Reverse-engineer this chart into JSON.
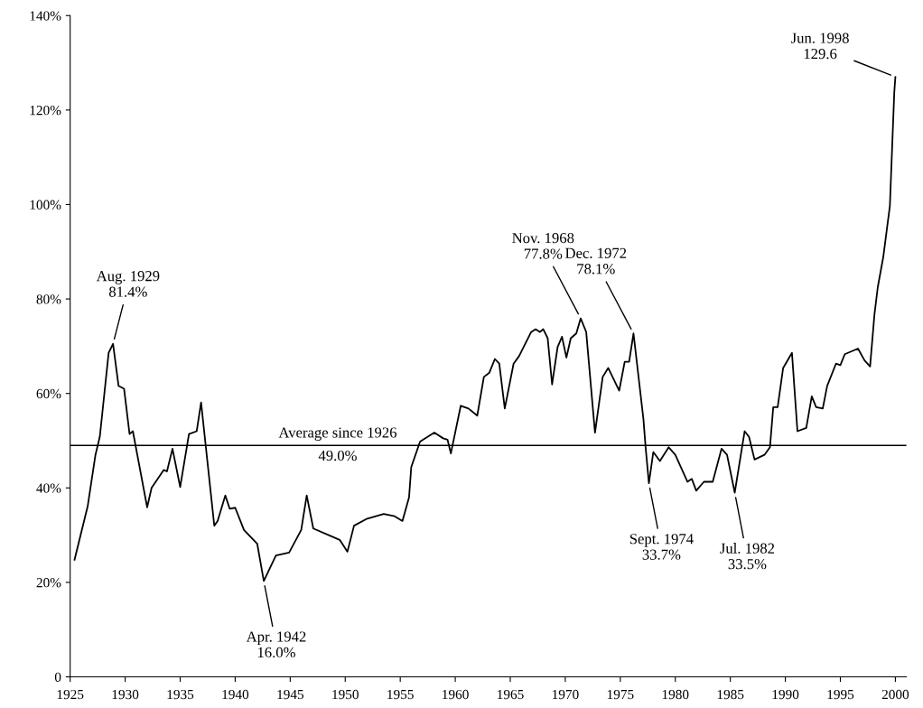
{
  "chart_data": {
    "type": "line",
    "x": [
      1925.4,
      1926.6,
      1927.3,
      1927.7,
      1928.5,
      1928.9,
      1929.4,
      1929.9,
      1930.4,
      1930.7,
      1932.0,
      1932.4,
      1933.5,
      1933.8,
      1934.3,
      1935.0,
      1935.8,
      1936.5,
      1936.9,
      1938.1,
      1938.4,
      1939.1,
      1939.5,
      1940.0,
      1940.8,
      1942.0,
      1942.6,
      1943.7,
      1944.9,
      1946.0,
      1946.5,
      1947.1,
      1948.7,
      1949.5,
      1950.2,
      1950.8,
      1952.0,
      1953.5,
      1954.5,
      1955.2,
      1955.8,
      1956.0,
      1956.8,
      1958.1,
      1958.9,
      1959.3,
      1959.6,
      1960.5,
      1961.2,
      1962.0,
      1962.6,
      1963.1,
      1963.6,
      1964.0,
      1964.5,
      1965.3,
      1965.8,
      1966.9,
      1967.3,
      1967.7,
      1968.0,
      1968.4,
      1968.8,
      1969.3,
      1969.7,
      1970.1,
      1970.5,
      1971.0,
      1971.4,
      1971.9,
      1972.7,
      1973.4,
      1973.9,
      1974.9,
      1975.4,
      1975.8,
      1976.2,
      1977.1,
      1977.3,
      1977.6,
      1978.0,
      1978.6,
      1979.4,
      1980.0,
      1981.1,
      1981.5,
      1981.9,
      1982.6,
      1983.4,
      1984.2,
      1984.7,
      1985.4,
      1986.3,
      1986.7,
      1987.2,
      1988.1,
      1988.6,
      1988.9,
      1989.3,
      1989.8,
      1990.6,
      1991.1,
      1991.9,
      1992.4,
      1992.8,
      1993.4,
      1993.8,
      1994.6,
      1995.0,
      1995.4,
      1996.6,
      1997.2,
      1997.7,
      1998.1,
      1998.4,
      1998.9,
      1999.5,
      1999.9,
      2000.0
    ],
    "series": [
      {
        "color": "#000000",
        "values": [
          24.8,
          36.2,
          47,
          50.9,
          68.6,
          70.5,
          61.6,
          61,
          51.4,
          52,
          35.9,
          40,
          43.8,
          43.5,
          48.3,
          40.2,
          51.4,
          52,
          58.1,
          32,
          33,
          38.4,
          35.6,
          35.8,
          31.1,
          28.2,
          20.3,
          25.7,
          26.3,
          31.1,
          38.4,
          31.4,
          29.8,
          29,
          26.5,
          32,
          33.5,
          34.5,
          34,
          33,
          38,
          44.4,
          49.8,
          51.7,
          50.5,
          50.2,
          47.3,
          57.4,
          56.8,
          55.3,
          63.5,
          64.4,
          67.3,
          66.3,
          56.8,
          66.3,
          67.9,
          73,
          73.6,
          73,
          73.6,
          71.7,
          61.9,
          69.8,
          72,
          67.6,
          71.7,
          72.7,
          75.9,
          73,
          51.7,
          63.5,
          65.4,
          60.6,
          66.7,
          66.7,
          72.7,
          54.6,
          48.6,
          41,
          47.6,
          45.7,
          48.6,
          47,
          41.3,
          41.9,
          39.4,
          41.3,
          41.3,
          48.3,
          47,
          39,
          52,
          50.8,
          46,
          47,
          48.6,
          57.1,
          57.1,
          65.4,
          68.6,
          52,
          52.7,
          59.4,
          57.1,
          56.8,
          61.6,
          66.3,
          66,
          68.3,
          69.5,
          67,
          65.7,
          76.8,
          82.5,
          88.9,
          99.7,
          123.8,
          127
        ]
      }
    ],
    "xlim": [
      1925,
      2001
    ],
    "xticks": [
      1925,
      1930,
      1935,
      1940,
      1945,
      1950,
      1955,
      1960,
      1965,
      1970,
      1975,
      1980,
      1985,
      1990,
      1995,
      2000
    ],
    "ylim": [
      0,
      140
    ],
    "yticks": [
      {
        "value": 0,
        "label": "0"
      },
      {
        "value": 20,
        "label": "20%"
      },
      {
        "value": 40,
        "label": "40%"
      },
      {
        "value": 60,
        "label": "60%"
      },
      {
        "value": 80,
        "label": "80%"
      },
      {
        "value": 100,
        "label": "100%"
      },
      {
        "value": 120,
        "label": "120%"
      },
      {
        "value": 140,
        "label": "140%"
      }
    ],
    "ref_lines": [
      {
        "axis": "y",
        "value": 49.0,
        "label": "Average since 1926\n49.0%",
        "color": "#000000"
      }
    ],
    "annotations": [
      {
        "text": "Aug. 1929\n81.4%",
        "x": 1928.9,
        "y": 70.5
      },
      {
        "text": "Apr. 1942\n16.0%",
        "x": 1942.6,
        "y": 20.3
      },
      {
        "text": "Nov. 1968\n77.8%",
        "x": 1971.4,
        "y": 75.9
      },
      {
        "text": "Dec. 1972\n78.1%",
        "x": 1976.2,
        "y": 72.7
      },
      {
        "text": "Sept. 1974\n33.7%",
        "x": 1977.6,
        "y": 41
      },
      {
        "text": "Jul. 1982\n33.5%",
        "x": 1985.4,
        "y": 39
      },
      {
        "text": "Jun. 1998\n129.6",
        "x": 2000.0,
        "y": 127
      }
    ],
    "grid": false,
    "legend": false
  }
}
